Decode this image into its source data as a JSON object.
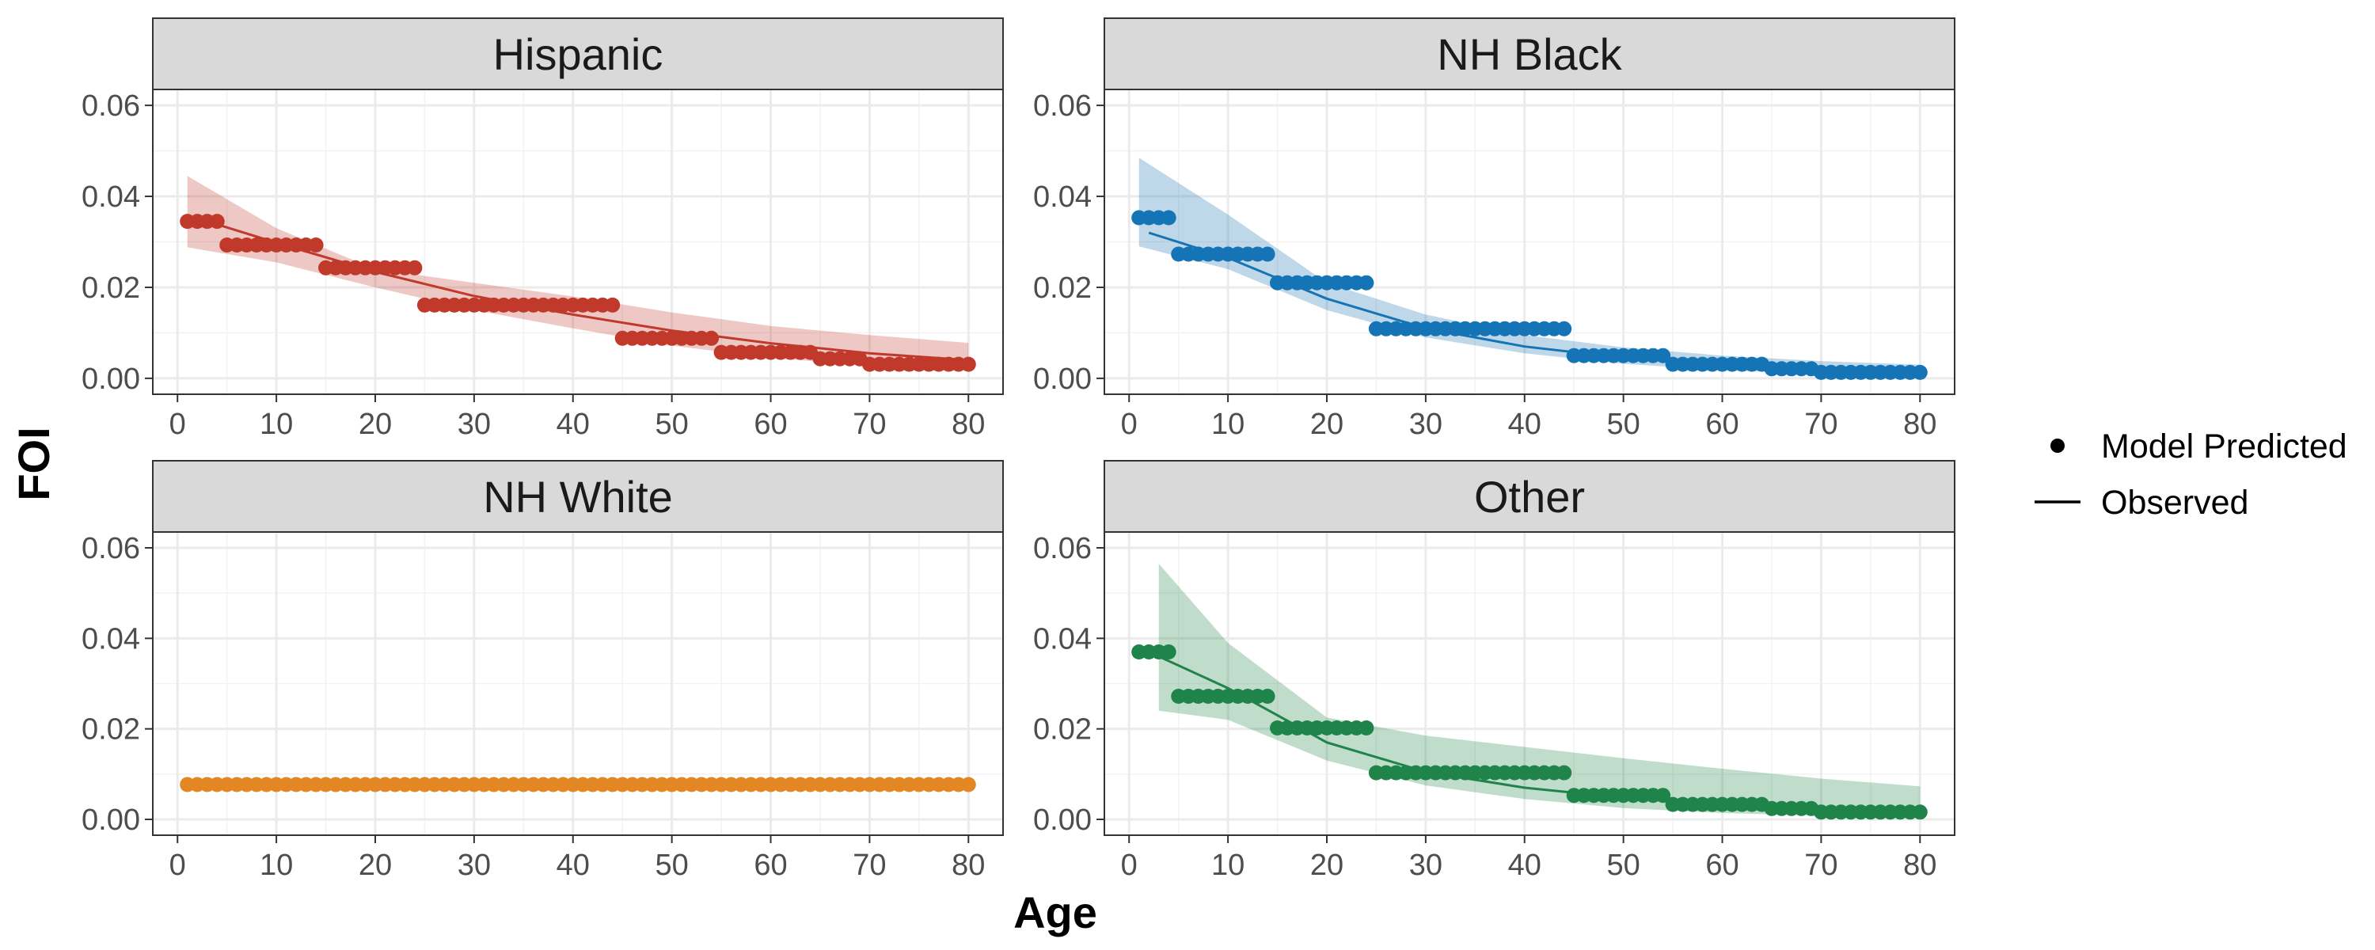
{
  "chart_data": {
    "type": "line",
    "xlabel": "Age",
    "ylabel": "FOI",
    "xlim": [
      -2.5,
      83.5
    ],
    "ylim": [
      -0.0035,
      0.0635
    ],
    "x_ticks": [
      0,
      10,
      20,
      30,
      40,
      50,
      60,
      70,
      80
    ],
    "y_ticks": [
      0.0,
      0.02,
      0.04,
      0.06
    ],
    "y_tick_labels": [
      "0.00",
      "0.02",
      "0.04",
      "0.06"
    ],
    "grid": true,
    "legend": {
      "position": "right",
      "entries": [
        {
          "label": "Model Predicted",
          "symbol": "point"
        },
        {
          "label": "Observed",
          "symbol": "line"
        }
      ]
    },
    "panels": [
      {
        "title": "Hispanic",
        "color": "#C0392B",
        "predicted_steps": [
          {
            "from": 1,
            "to": 4,
            "value": 0.0345
          },
          {
            "from": 5,
            "to": 14,
            "value": 0.0293
          },
          {
            "from": 15,
            "to": 24,
            "value": 0.0243
          },
          {
            "from": 25,
            "to": 44,
            "value": 0.0161
          },
          {
            "from": 45,
            "to": 54,
            "value": 0.0088
          },
          {
            "from": 55,
            "to": 64,
            "value": 0.0057
          },
          {
            "from": 65,
            "to": 69,
            "value": 0.0043
          },
          {
            "from": 70,
            "to": 80,
            "value": 0.0031
          }
        ],
        "observed": {
          "x": [
            3,
            10,
            20,
            30,
            40,
            50,
            60,
            70,
            80
          ],
          "y": [
            0.0345,
            0.0298,
            0.0234,
            0.0181,
            0.014,
            0.0105,
            0.0077,
            0.0055,
            0.004
          ]
        },
        "band_upper": {
          "x": [
            1,
            10,
            20,
            30,
            40,
            50,
            60,
            70,
            80
          ],
          "y": [
            0.0445,
            0.033,
            0.024,
            0.021,
            0.018,
            0.0145,
            0.0115,
            0.0095,
            0.0078
          ]
        },
        "band_lower": {
          "x": [
            1,
            10,
            20,
            30,
            40,
            50,
            60,
            70,
            80
          ],
          "y": [
            0.0288,
            0.0255,
            0.02,
            0.015,
            0.011,
            0.0072,
            0.0045,
            0.0028,
            0.0018
          ]
        }
      },
      {
        "title": "NH Black",
        "color": "#1474B5",
        "predicted_steps": [
          {
            "from": 1,
            "to": 4,
            "value": 0.0353
          },
          {
            "from": 5,
            "to": 14,
            "value": 0.0273
          },
          {
            "from": 15,
            "to": 24,
            "value": 0.021
          },
          {
            "from": 25,
            "to": 44,
            "value": 0.0109
          },
          {
            "from": 45,
            "to": 54,
            "value": 0.005
          },
          {
            "from": 55,
            "to": 64,
            "value": 0.0031
          },
          {
            "from": 65,
            "to": 69,
            "value": 0.0021
          },
          {
            "from": 70,
            "to": 80,
            "value": 0.0013
          }
        ],
        "observed": {
          "x": [
            2,
            10,
            20,
            30,
            40,
            50,
            60,
            70,
            80
          ],
          "y": [
            0.032,
            0.0265,
            0.0175,
            0.011,
            0.007,
            0.0045,
            0.003,
            0.002,
            0.0014
          ]
        },
        "band_upper": {
          "x": [
            1,
            10,
            20,
            30,
            40,
            50,
            60,
            70,
            80
          ],
          "y": [
            0.0485,
            0.036,
            0.021,
            0.014,
            0.0095,
            0.0068,
            0.005,
            0.0038,
            0.003
          ]
        },
        "band_lower": {
          "x": [
            1,
            10,
            20,
            30,
            40,
            50,
            60,
            70,
            80
          ],
          "y": [
            0.029,
            0.024,
            0.015,
            0.009,
            0.0055,
            0.0032,
            0.0018,
            0.001,
            0.0006
          ]
        }
      },
      {
        "title": "NH White",
        "color": "#E28724",
        "predicted_steps": [
          {
            "from": 1,
            "to": 80,
            "value": 0.0077
          }
        ],
        "observed": {
          "x": [
            1,
            80
          ],
          "y": [
            0.0077,
            0.0076
          ]
        },
        "band_upper": {
          "x": [
            1,
            80
          ],
          "y": [
            0.008,
            0.0079
          ]
        },
        "band_lower": {
          "x": [
            1,
            80
          ],
          "y": [
            0.0074,
            0.0073
          ]
        }
      },
      {
        "title": "Other",
        "color": "#1E8449",
        "predicted_steps": [
          {
            "from": 1,
            "to": 4,
            "value": 0.037
          },
          {
            "from": 5,
            "to": 14,
            "value": 0.0272
          },
          {
            "from": 15,
            "to": 24,
            "value": 0.0202
          },
          {
            "from": 25,
            "to": 44,
            "value": 0.0103
          },
          {
            "from": 45,
            "to": 54,
            "value": 0.0053
          },
          {
            "from": 55,
            "to": 64,
            "value": 0.0033
          },
          {
            "from": 65,
            "to": 69,
            "value": 0.0024
          },
          {
            "from": 70,
            "to": 80,
            "value": 0.0016
          }
        ],
        "observed": {
          "x": [
            1,
            10,
            20,
            30,
            40,
            50,
            60,
            70,
            80
          ],
          "y": [
            0.038,
            0.029,
            0.017,
            0.0105,
            0.007,
            0.0048,
            0.0032,
            0.0022,
            0.0016
          ]
        },
        "band_upper": {
          "x": [
            3,
            10,
            20,
            30,
            40,
            50,
            60,
            70,
            80
          ],
          "y": [
            0.0565,
            0.039,
            0.0225,
            0.0185,
            0.016,
            0.0135,
            0.0112,
            0.009,
            0.0073
          ]
        },
        "band_lower": {
          "x": [
            3,
            10,
            20,
            30,
            40,
            50,
            60,
            70,
            80
          ],
          "y": [
            0.024,
            0.022,
            0.013,
            0.0075,
            0.0045,
            0.0025,
            0.0014,
            0.0008,
            0.0005
          ]
        }
      }
    ]
  }
}
